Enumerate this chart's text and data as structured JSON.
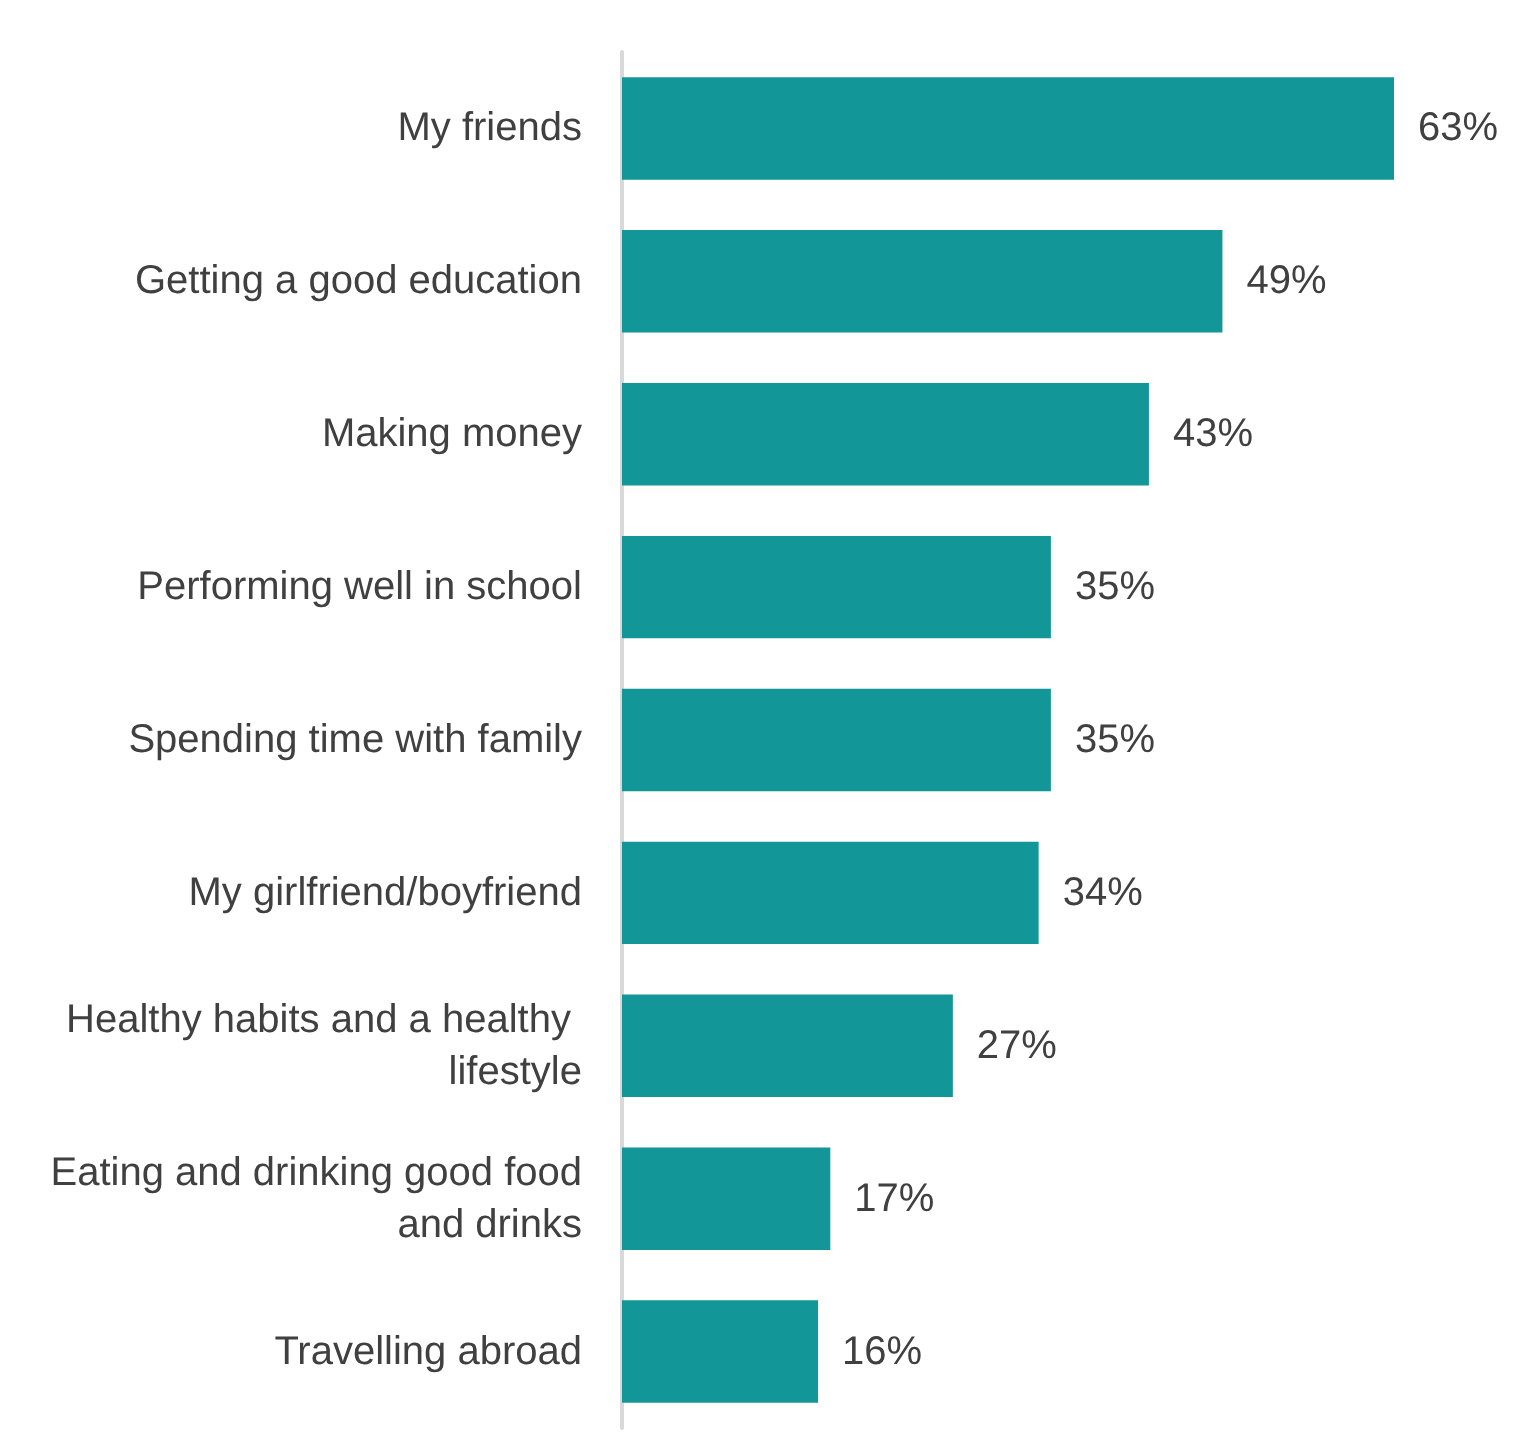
{
  "chart_data": {
    "type": "bar",
    "orientation": "horizontal",
    "categories": [
      "My friends",
      "Getting a good education",
      "Making money",
      "Performing well in school",
      "Spending time with family",
      "My girlfriend/boyfriend",
      "Healthy habits and a healthy lifestyle",
      "Eating and drinking good food and drinks",
      "Travelling abroad"
    ],
    "values": [
      63,
      49,
      43,
      35,
      35,
      34,
      27,
      17,
      16
    ],
    "value_labels": [
      "63%",
      "49%",
      "43%",
      "35%",
      "35%",
      "34%",
      "27%",
      "17%",
      "16%"
    ],
    "color": "#129697",
    "grid": false
  }
}
